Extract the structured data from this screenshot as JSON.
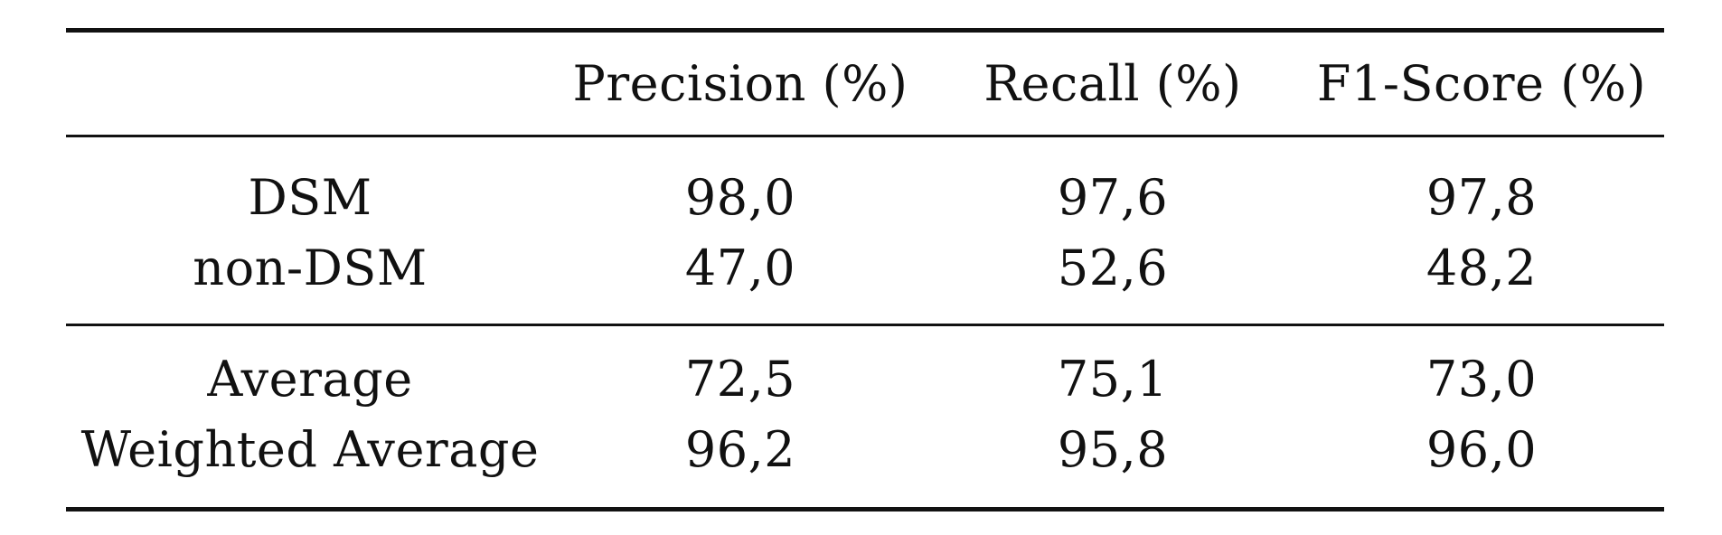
{
  "table": {
    "columns": [
      "",
      "Precision (%)",
      "Recall (%)",
      "F1-Score (%)"
    ],
    "groups": [
      {
        "rows": [
          {
            "label": "DSM",
            "values": [
              "98,0",
              "97,6",
              "97,8"
            ]
          },
          {
            "label": "non-DSM",
            "values": [
              "47,0",
              "52,6",
              "48,2"
            ]
          }
        ]
      },
      {
        "rows": [
          {
            "label": "Average",
            "values": [
              "72,5",
              "75,1",
              "73,0"
            ]
          },
          {
            "label": "Weighted Average",
            "values": [
              "96,2",
              "95,8",
              "96,0"
            ]
          }
        ]
      }
    ]
  }
}
